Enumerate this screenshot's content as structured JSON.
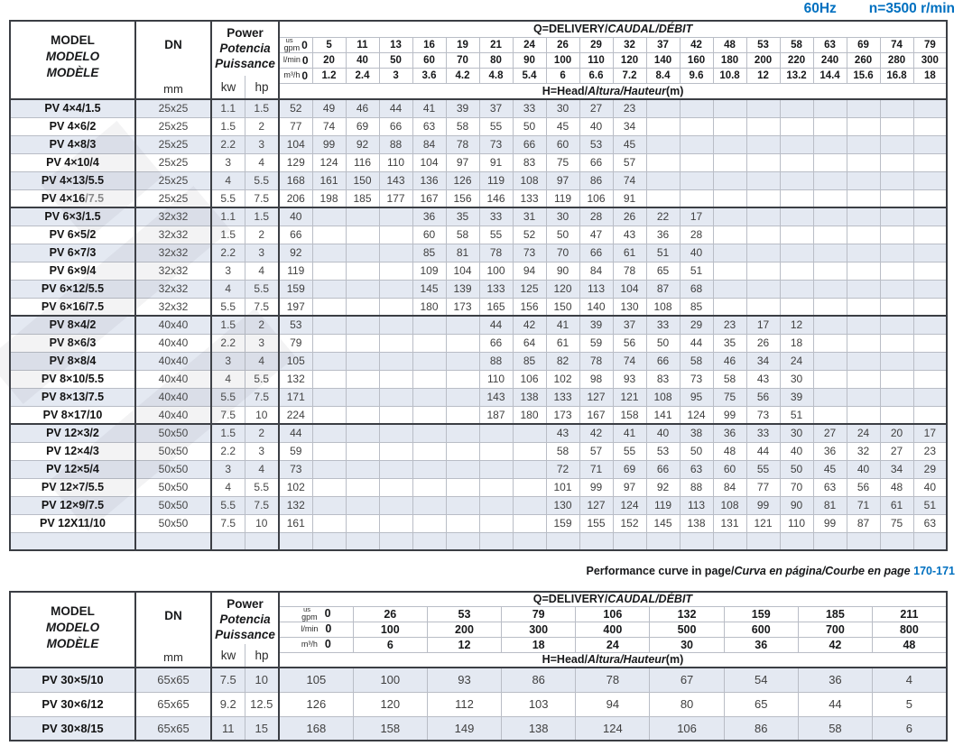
{
  "page": {
    "frequency": "60Hz",
    "speed": "n=3500 r/min",
    "accent_blue": "#0070c0",
    "zebra_row_color": "#e4e9f2"
  },
  "labels": {
    "model_lines": [
      "MODEL",
      "MODELO",
      "MODÈLE"
    ],
    "dn": "DN",
    "dn_unit": "mm",
    "power_lines": [
      "Power",
      "Potencia",
      "Puissance"
    ],
    "kw": "kw",
    "hp": "hp",
    "q_title_en": "Q=DELIVERY/",
    "q_title_intl": "CAUDAL/DÉBIT",
    "h_title_en": "H=Head/",
    "h_title_intl": "Altura/Hauteur",
    "h_title_unit": "(m)",
    "unit_gpm_top": "us",
    "unit_gpm": "gpm",
    "unit_lmin": "l/min",
    "unit_m3h": "m³/h"
  },
  "note": {
    "en": "Performance curve in page/",
    "intl": "Curva en página/Courbe en page",
    "pages": "170-171"
  },
  "table1": {
    "gpm": [
      "0",
      "5",
      "11",
      "13",
      "16",
      "19",
      "21",
      "24",
      "26",
      "29",
      "32",
      "37",
      "42",
      "48",
      "53",
      "58",
      "63",
      "69",
      "74",
      "79"
    ],
    "lmin": [
      "0",
      "20",
      "40",
      "50",
      "60",
      "70",
      "80",
      "90",
      "100",
      "110",
      "120",
      "140",
      "160",
      "180",
      "200",
      "220",
      "240",
      "260",
      "280",
      "300"
    ],
    "m3h": [
      "0",
      "1.2",
      "2.4",
      "3",
      "3.6",
      "4.2",
      "4.8",
      "5.4",
      "6",
      "6.6",
      "7.2",
      "8.4",
      "9.6",
      "10.8",
      "12",
      "13.2",
      "14.4",
      "15.6",
      "16.8",
      "18"
    ],
    "group_ends": [
      5,
      11,
      17
    ],
    "rows": [
      {
        "model": "PV 4×4/1.5",
        "model_gray": "",
        "dn": "25x25",
        "kw": "1.1",
        "hp": "1.5",
        "h": [
          "52",
          "49",
          "46",
          "44",
          "41",
          "39",
          "37",
          "33",
          "30",
          "27",
          "23",
          "",
          "",
          "",
          "",
          "",
          "",
          "",
          "",
          ""
        ]
      },
      {
        "model": "PV 4×6/2",
        "model_gray": "",
        "dn": "25x25",
        "kw": "1.5",
        "hp": "2",
        "h": [
          "77",
          "74",
          "69",
          "66",
          "63",
          "58",
          "55",
          "50",
          "45",
          "40",
          "34",
          "",
          "",
          "",
          "",
          "",
          "",
          "",
          "",
          ""
        ]
      },
      {
        "model": "PV 4×8/3",
        "model_gray": "",
        "dn": "25x25",
        "kw": "2.2",
        "hp": "3",
        "h": [
          "104",
          "99",
          "92",
          "88",
          "84",
          "78",
          "73",
          "66",
          "60",
          "53",
          "45",
          "",
          "",
          "",
          "",
          "",
          "",
          "",
          "",
          ""
        ]
      },
      {
        "model": "PV 4×10/4",
        "model_gray": "",
        "dn": "25x25",
        "kw": "3",
        "hp": "4",
        "h": [
          "129",
          "124",
          "116",
          "110",
          "104",
          "97",
          "91",
          "83",
          "75",
          "66",
          "57",
          "",
          "",
          "",
          "",
          "",
          "",
          "",
          "",
          ""
        ]
      },
      {
        "model": "PV 4×13/5.5",
        "model_gray": "",
        "dn": "25x25",
        "kw": "4",
        "hp": "5.5",
        "h": [
          "168",
          "161",
          "150",
          "143",
          "136",
          "126",
          "119",
          "108",
          "97",
          "86",
          "74",
          "",
          "",
          "",
          "",
          "",
          "",
          "",
          "",
          ""
        ]
      },
      {
        "model": "PV 4×16",
        "model_gray": "/7.5",
        "dn": "25x25",
        "kw": "5.5",
        "hp": "7.5",
        "h": [
          "206",
          "198",
          "185",
          "177",
          "167",
          "156",
          "146",
          "133",
          "119",
          "106",
          "91",
          "",
          "",
          "",
          "",
          "",
          "",
          "",
          "",
          ""
        ]
      },
      {
        "model": "PV 6×3/1.5",
        "model_gray": "",
        "dn": "32x32",
        "kw": "1.1",
        "hp": "1.5",
        "h": [
          "40",
          "",
          "",
          "",
          "36",
          "35",
          "33",
          "31",
          "30",
          "28",
          "26",
          "22",
          "17",
          "",
          "",
          "",
          "",
          "",
          "",
          ""
        ]
      },
      {
        "model": "PV 6×5/2",
        "model_gray": "",
        "dn": "32x32",
        "kw": "1.5",
        "hp": "2",
        "h": [
          "66",
          "",
          "",
          "",
          "60",
          "58",
          "55",
          "52",
          "50",
          "47",
          "43",
          "36",
          "28",
          "",
          "",
          "",
          "",
          "",
          "",
          ""
        ]
      },
      {
        "model": "PV 6×7/3",
        "model_gray": "",
        "dn": "32x32",
        "kw": "2.2",
        "hp": "3",
        "h": [
          "92",
          "",
          "",
          "",
          "85",
          "81",
          "78",
          "73",
          "70",
          "66",
          "61",
          "51",
          "40",
          "",
          "",
          "",
          "",
          "",
          "",
          ""
        ]
      },
      {
        "model": "PV 6×9/4",
        "model_gray": "",
        "dn": "32x32",
        "kw": "3",
        "hp": "4",
        "h": [
          "119",
          "",
          "",
          "",
          "109",
          "104",
          "100",
          "94",
          "90",
          "84",
          "78",
          "65",
          "51",
          "",
          "",
          "",
          "",
          "",
          "",
          ""
        ]
      },
      {
        "model": "PV 6×12/5.5",
        "model_gray": "",
        "dn": "32x32",
        "kw": "4",
        "hp": "5.5",
        "h": [
          "159",
          "",
          "",
          "",
          "145",
          "139",
          "133",
          "125",
          "120",
          "113",
          "104",
          "87",
          "68",
          "",
          "",
          "",
          "",
          "",
          "",
          ""
        ]
      },
      {
        "model": "PV 6×16/7.5",
        "model_gray": "",
        "dn": "32x32",
        "kw": "5.5",
        "hp": "7.5",
        "h": [
          "197",
          "",
          "",
          "",
          "180",
          "173",
          "165",
          "156",
          "150",
          "140",
          "130",
          "108",
          "85",
          "",
          "",
          "",
          "",
          "",
          "",
          ""
        ]
      },
      {
        "model": "PV 8×4/2",
        "model_gray": "",
        "dn": "40x40",
        "kw": "1.5",
        "hp": "2",
        "h": [
          "53",
          "",
          "",
          "",
          "",
          "",
          "44",
          "42",
          "41",
          "39",
          "37",
          "33",
          "29",
          "23",
          "17",
          "12",
          "",
          "",
          "",
          ""
        ]
      },
      {
        "model": "PV 8×6/3",
        "model_gray": "",
        "dn": "40x40",
        "kw": "2.2",
        "hp": "3",
        "h": [
          "79",
          "",
          "",
          "",
          "",
          "",
          "66",
          "64",
          "61",
          "59",
          "56",
          "50",
          "44",
          "35",
          "26",
          "18",
          "",
          "",
          "",
          ""
        ]
      },
      {
        "model": "PV 8×8/4",
        "model_gray": "",
        "dn": "40x40",
        "kw": "3",
        "hp": "4",
        "h": [
          "105",
          "",
          "",
          "",
          "",
          "",
          "88",
          "85",
          "82",
          "78",
          "74",
          "66",
          "58",
          "46",
          "34",
          "24",
          "",
          "",
          "",
          ""
        ]
      },
      {
        "model": "PV 8×10/5.5",
        "model_gray": "",
        "dn": "40x40",
        "kw": "4",
        "hp": "5.5",
        "h": [
          "132",
          "",
          "",
          "",
          "",
          "",
          "110",
          "106",
          "102",
          "98",
          "93",
          "83",
          "73",
          "58",
          "43",
          "30",
          "",
          "",
          "",
          ""
        ]
      },
      {
        "model": "PV 8×13/7.5",
        "model_gray": "",
        "dn": "40x40",
        "kw": "5.5",
        "hp": "7.5",
        "h": [
          "171",
          "",
          "",
          "",
          "",
          "",
          "143",
          "138",
          "133",
          "127",
          "121",
          "108",
          "95",
          "75",
          "56",
          "39",
          "",
          "",
          "",
          ""
        ]
      },
      {
        "model": "PV 8×17/10",
        "model_gray": "",
        "dn": "40x40",
        "kw": "7.5",
        "hp": "10",
        "h": [
          "224",
          "",
          "",
          "",
          "",
          "",
          "187",
          "180",
          "173",
          "167",
          "158",
          "141",
          "124",
          "99",
          "73",
          "51",
          "",
          "",
          "",
          ""
        ]
      },
      {
        "model": "PV 12×3/2",
        "model_gray": "",
        "dn": "50x50",
        "kw": "1.5",
        "hp": "2",
        "h": [
          "44",
          "",
          "",
          "",
          "",
          "",
          "",
          "",
          "43",
          "42",
          "41",
          "40",
          "38",
          "36",
          "33",
          "30",
          "27",
          "24",
          "20",
          "17"
        ]
      },
      {
        "model": "PV 12×4/3",
        "model_gray": "",
        "dn": "50x50",
        "kw": "2.2",
        "hp": "3",
        "h": [
          "59",
          "",
          "",
          "",
          "",
          "",
          "",
          "",
          "58",
          "57",
          "55",
          "53",
          "50",
          "48",
          "44",
          "40",
          "36",
          "32",
          "27",
          "23"
        ]
      },
      {
        "model": "PV 12×5/4",
        "model_gray": "",
        "dn": "50x50",
        "kw": "3",
        "hp": "4",
        "h": [
          "73",
          "",
          "",
          "",
          "",
          "",
          "",
          "",
          "72",
          "71",
          "69",
          "66",
          "63",
          "60",
          "55",
          "50",
          "45",
          "40",
          "34",
          "29"
        ]
      },
      {
        "model": "PV 12×7/5.5",
        "model_gray": "",
        "dn": "50x50",
        "kw": "4",
        "hp": "5.5",
        "h": [
          "102",
          "",
          "",
          "",
          "",
          "",
          "",
          "",
          "101",
          "99",
          "97",
          "92",
          "88",
          "84",
          "77",
          "70",
          "63",
          "56",
          "48",
          "40"
        ]
      },
      {
        "model": "PV 12×9/7.5",
        "model_gray": "",
        "dn": "50x50",
        "kw": "5.5",
        "hp": "7.5",
        "h": [
          "132",
          "",
          "",
          "",
          "",
          "",
          "",
          "",
          "130",
          "127",
          "124",
          "119",
          "113",
          "108",
          "99",
          "90",
          "81",
          "71",
          "61",
          "51"
        ]
      },
      {
        "model": "PV 12X11/10",
        "model_gray": "",
        "dn": "50x50",
        "kw": "7.5",
        "hp": "10",
        "h": [
          "161",
          "",
          "",
          "",
          "",
          "",
          "",
          "",
          "159",
          "155",
          "152",
          "145",
          "138",
          "131",
          "121",
          "110",
          "99",
          "87",
          "75",
          "63"
        ]
      },
      {
        "model": "",
        "model_gray": "",
        "dn": "",
        "kw": "",
        "hp": "",
        "h": [
          "",
          "",
          "",
          "",
          "",
          "",
          "",
          "",
          "",
          "",
          "",
          "",
          "",
          "",
          "",
          "",
          "",
          "",
          "",
          ""
        ]
      }
    ]
  },
  "table2": {
    "gpm": [
      "0",
      "26",
      "53",
      "79",
      "106",
      "132",
      "159",
      "185",
      "211"
    ],
    "lmin": [
      "0",
      "100",
      "200",
      "300",
      "400",
      "500",
      "600",
      "700",
      "800"
    ],
    "m3h": [
      "0",
      "6",
      "12",
      "18",
      "24",
      "30",
      "36",
      "42",
      "48"
    ],
    "group_ends": [],
    "rows": [
      {
        "model": "PV 30×5/10",
        "model_gray": "",
        "dn": "65x65",
        "kw": "7.5",
        "hp": "10",
        "h": [
          "105",
          "100",
          "93",
          "86",
          "78",
          "67",
          "54",
          "36",
          "4"
        ]
      },
      {
        "model": "PV 30×6/12",
        "model_gray": "",
        "dn": "65x65",
        "kw": "9.2",
        "hp": "12.5",
        "h": [
          "126",
          "120",
          "112",
          "103",
          "94",
          "80",
          "65",
          "44",
          "5"
        ]
      },
      {
        "model": "PV 30×8/15",
        "model_gray": "",
        "dn": "65x65",
        "kw": "11",
        "hp": "15",
        "h": [
          "168",
          "158",
          "149",
          "138",
          "124",
          "106",
          "86",
          "58",
          "6"
        ]
      }
    ]
  }
}
